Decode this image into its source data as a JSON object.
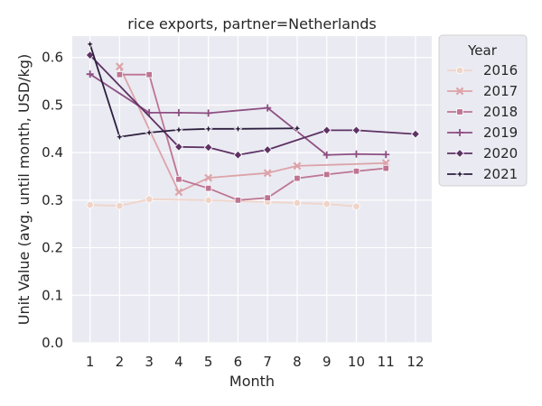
{
  "chart_data": {
    "type": "line",
    "title": "rice exports, partner=Netherlands",
    "xlabel": "Month",
    "ylabel": "Unit Value (avg. until month, USD/kg)",
    "xlim": [
      0.4,
      12.55
    ],
    "ylim": [
      0.0,
      0.645
    ],
    "x_ticks": [
      1,
      2,
      3,
      4,
      5,
      6,
      7,
      8,
      9,
      10,
      11,
      12
    ],
    "y_ticks": [
      0.0,
      0.1,
      0.2,
      0.3,
      0.4,
      0.5,
      0.6
    ],
    "grid": true,
    "legend": {
      "title": "Year",
      "placement": "outside-top-right"
    },
    "series": [
      {
        "name": "2016",
        "color": "#f0d4c8",
        "marker": "circle",
        "x": [
          1,
          2,
          3,
          5,
          7,
          8,
          9,
          10
        ],
        "y": [
          0.29,
          0.288,
          0.302,
          0.3,
          0.296,
          0.294,
          0.292,
          0.287
        ]
      },
      {
        "name": "2017",
        "color": "#dca3a8",
        "marker": "x",
        "x": [
          2,
          4,
          5,
          7,
          8,
          11
        ],
        "y": [
          0.581,
          0.317,
          0.347,
          0.357,
          0.372,
          0.378
        ]
      },
      {
        "name": "2018",
        "color": "#bd7592",
        "marker": "square",
        "x": [
          2,
          3,
          4,
          5,
          6,
          7,
          8,
          9,
          10,
          11
        ],
        "y": [
          0.564,
          0.564,
          0.344,
          0.325,
          0.3,
          0.305,
          0.346,
          0.354,
          0.361,
          0.367
        ]
      },
      {
        "name": "2019",
        "color": "#8e4f82",
        "marker": "plus",
        "x": [
          1,
          3,
          4,
          5,
          7,
          9,
          10,
          11
        ],
        "y": [
          0.565,
          0.484,
          0.484,
          0.483,
          0.494,
          0.395,
          0.397,
          0.396
        ]
      },
      {
        "name": "2020",
        "color": "#5e3264",
        "marker": "diamond",
        "x": [
          1,
          4,
          5,
          6,
          7,
          9,
          10,
          12
        ],
        "y": [
          0.605,
          0.412,
          0.411,
          0.395,
          0.406,
          0.447,
          0.447,
          0.439
        ]
      },
      {
        "name": "2021",
        "color": "#2d1e3e",
        "marker": "star",
        "x": [
          1,
          2,
          3,
          4,
          5,
          6,
          8
        ],
        "y": [
          0.628,
          0.433,
          0.442,
          0.448,
          0.45,
          0.45,
          0.451
        ]
      }
    ]
  }
}
